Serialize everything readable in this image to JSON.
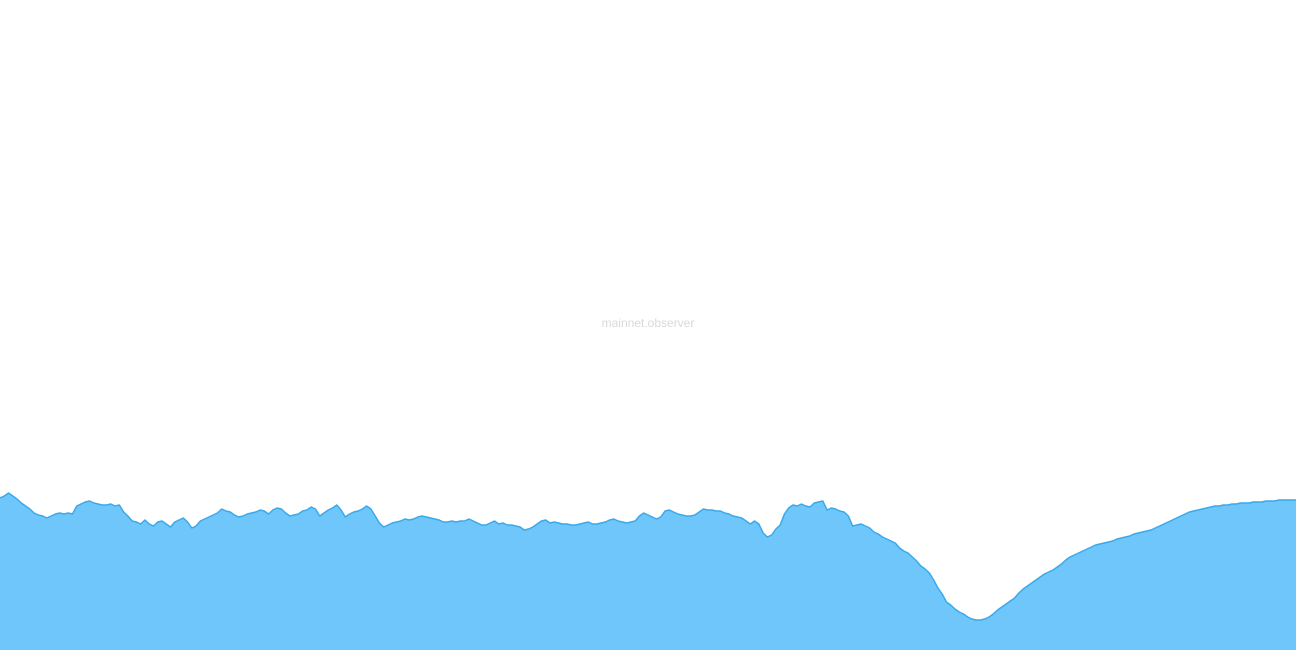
{
  "watermark": "mainnet.observer",
  "colors": {
    "fill": "#6ec6fa",
    "stroke": "#3aa9ea",
    "background": "#ffffff",
    "watermark": "#d9d9d9"
  },
  "chart_data": {
    "type": "area",
    "title": "",
    "xlabel": "",
    "ylabel": "",
    "grid": false,
    "legend": "none",
    "x_axis_visible": false,
    "y_axis_visible": false,
    "ylim": [
      0,
      650
    ],
    "series": [
      {
        "values": [
          152,
          154,
          157,
          154,
          151,
          147,
          144,
          141,
          137,
          135,
          134,
          132,
          134,
          136,
          137,
          136,
          137,
          136,
          144,
          146,
          148,
          149,
          147,
          146,
          145,
          145,
          146,
          144,
          145,
          138,
          134,
          129,
          128,
          126,
          130,
          126,
          124,
          128,
          129,
          126,
          123,
          128,
          130,
          132,
          128,
          122,
          124,
          129,
          131,
          133,
          135,
          137,
          141,
          139,
          138,
          135,
          133,
          134,
          136,
          137,
          138,
          140,
          139,
          136,
          140,
          142,
          141,
          137,
          134,
          135,
          136,
          139,
          140,
          143,
          141,
          134,
          137,
          140,
          142,
          145,
          140,
          133,
          136,
          138,
          139,
          141,
          144,
          141,
          134,
          127,
          123,
          125,
          127,
          128,
          129,
          131,
          130,
          131,
          133,
          134,
          133,
          132,
          131,
          130,
          128,
          128,
          129,
          128,
          129,
          129,
          131,
          129,
          127,
          125,
          125,
          127,
          129,
          126,
          127,
          125,
          125,
          124,
          123,
          120,
          121,
          123,
          126,
          129,
          130,
          127,
          128,
          127,
          126,
          126,
          125,
          125,
          126,
          127,
          128,
          126,
          126,
          127,
          128,
          130,
          131,
          129,
          128,
          127,
          128,
          129,
          134,
          137,
          135,
          133,
          131,
          133,
          139,
          140,
          138,
          136,
          135,
          134,
          134,
          135,
          138,
          141,
          140,
          140,
          139,
          139,
          137,
          136,
          134,
          133,
          132,
          129,
          126,
          129,
          126,
          117,
          113,
          115,
          121,
          125,
          136,
          142,
          145,
          144,
          146,
          144,
          143,
          147,
          148,
          149,
          140,
          142,
          141,
          139,
          138,
          134,
          124,
          125,
          126,
          124,
          122,
          118,
          116,
          113,
          111,
          109,
          107,
          102,
          99,
          97,
          93,
          89,
          84,
          81,
          77,
          70,
          62,
          56,
          48,
          45,
          41,
          38,
          36,
          33,
          31,
          30,
          30,
          31,
          33,
          36,
          40,
          43,
          46,
          49,
          52,
          57,
          61,
          64,
          67,
          70,
          73,
          76,
          78,
          80,
          83,
          86,
          90,
          93,
          95,
          97,
          99,
          101,
          103,
          105,
          106,
          107,
          108,
          109,
          111,
          112,
          113,
          114,
          116,
          117,
          118,
          119,
          120,
          122,
          124,
          126,
          128,
          130,
          132,
          134,
          136,
          138,
          139,
          140,
          141,
          142,
          143,
          144,
          144,
          145,
          145,
          146,
          146,
          147,
          147,
          147,
          148,
          148,
          148,
          149,
          149,
          149,
          150,
          150,
          150,
          150,
          150
        ]
      }
    ]
  }
}
